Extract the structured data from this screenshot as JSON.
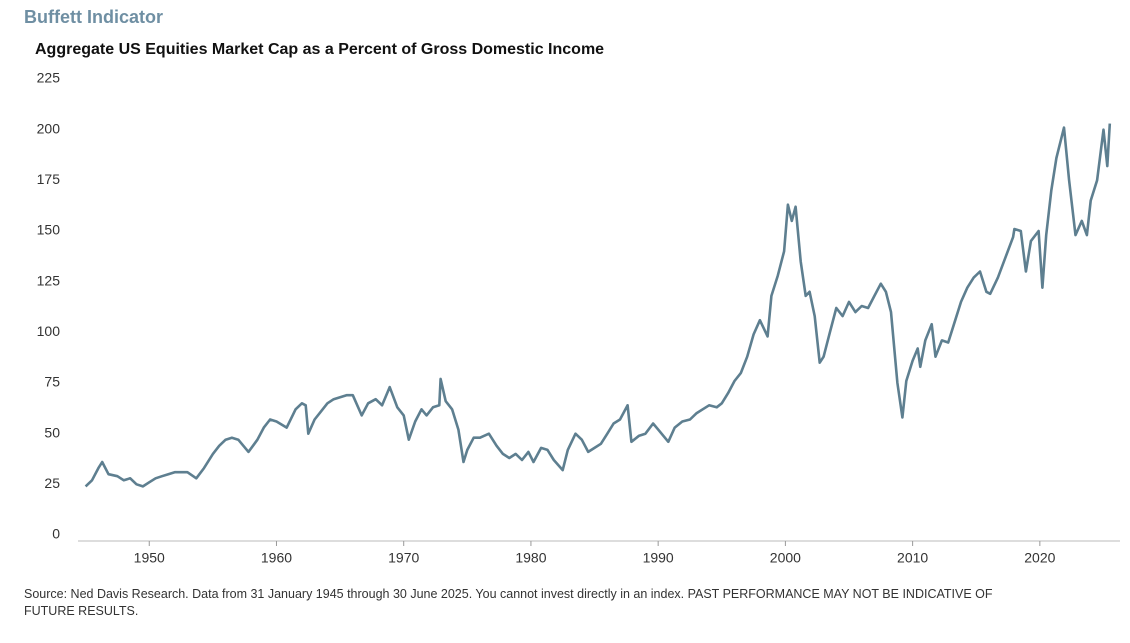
{
  "chart_data": {
    "type": "line",
    "title": "Buffett Indicator",
    "subtitle": "Aggregate US Equities Market Cap as a Percent of Gross Domestic Income",
    "source": "Source: Ned Davis Research. Data from 31 January 1945 through 30 June 2025. You cannot invest directly in an index. PAST PERFORMANCE MAY NOT BE INDICATIVE OF FUTURE RESULTS.",
    "color": "#5e7f90",
    "xlim": [
      1944.4,
      2026.3
    ],
    "xticks": [
      1950,
      1960,
      1970,
      1980,
      1990,
      2000,
      2010,
      2020
    ],
    "ylim": [
      0,
      225
    ],
    "yticks": [
      0,
      25,
      50,
      75,
      100,
      125,
      150,
      175,
      200,
      225
    ],
    "grid": false,
    "x": [
      1945.0,
      1945.5,
      1946.0,
      1946.3,
      1946.8,
      1947.5,
      1948.0,
      1948.5,
      1949.0,
      1949.5,
      1950.0,
      1950.5,
      1951.0,
      1951.5,
      1952.0,
      1952.5,
      1953.0,
      1953.7,
      1954.3,
      1955.0,
      1955.5,
      1956.0,
      1956.5,
      1957.0,
      1957.8,
      1958.5,
      1959.0,
      1959.5,
      1960.0,
      1960.8,
      1961.5,
      1962.0,
      1962.3,
      1962.5,
      1963.0,
      1963.5,
      1964.0,
      1964.5,
      1965.0,
      1965.5,
      1966.0,
      1966.7,
      1967.2,
      1967.8,
      1968.3,
      1968.9,
      1969.5,
      1970.0,
      1970.4,
      1970.9,
      1971.4,
      1971.8,
      1972.3,
      1972.8,
      1972.9,
      1973.3,
      1973.8,
      1974.3,
      1974.7,
      1975.0,
      1975.5,
      1976.0,
      1976.7,
      1977.3,
      1977.8,
      1978.3,
      1978.8,
      1979.3,
      1979.8,
      1980.2,
      1980.8,
      1981.3,
      1981.8,
      1982.5,
      1982.9,
      1983.5,
      1984.0,
      1984.5,
      1985.0,
      1985.5,
      1986.0,
      1986.5,
      1987.0,
      1987.6,
      1987.9,
      1988.5,
      1989.0,
      1989.6,
      1990.0,
      1990.8,
      1991.3,
      1991.9,
      1992.5,
      1993.0,
      1993.5,
      1994.0,
      1994.6,
      1995.0,
      1995.5,
      1996.0,
      1996.5,
      1997.0,
      1997.5,
      1998.0,
      1998.6,
      1998.9,
      1999.4,
      1999.9,
      2000.2,
      2000.5,
      2000.8,
      2001.2,
      2001.6,
      2001.9,
      2002.3,
      2002.7,
      2003.0,
      2003.5,
      2004.0,
      2004.5,
      2005.0,
      2005.5,
      2006.0,
      2006.5,
      2007.0,
      2007.5,
      2007.9,
      2008.3,
      2008.8,
      2009.2,
      2009.5,
      2010.0,
      2010.4,
      2010.6,
      2011.0,
      2011.5,
      2011.8,
      2012.3,
      2012.8,
      2013.3,
      2013.8,
      2014.3,
      2014.8,
      2015.3,
      2015.8,
      2016.1,
      2016.7,
      2017.3,
      2017.9,
      2018.0,
      2018.5,
      2018.9,
      2019.3,
      2019.9,
      2020.2,
      2020.5,
      2020.9,
      2021.3,
      2021.9,
      2022.3,
      2022.8,
      2023.3,
      2023.7,
      2024.0,
      2024.5,
      2025.0,
      2025.3,
      2025.5
    ],
    "series": [
      {
        "values": [
          24,
          27,
          33,
          36,
          30,
          29,
          27,
          28,
          25,
          24,
          26,
          28,
          29,
          30,
          31,
          31,
          31,
          28,
          33,
          40,
          44,
          47,
          48,
          47,
          41,
          47,
          53,
          57,
          56,
          53,
          62,
          65,
          64,
          50,
          57,
          61,
          65,
          67,
          68,
          69,
          69,
          59,
          65,
          67,
          64,
          73,
          63,
          59,
          47,
          56,
          62,
          59,
          63,
          64,
          77,
          66,
          62,
          52,
          36,
          42,
          48,
          48,
          50,
          44,
          40,
          38,
          40,
          37,
          41,
          36,
          43,
          42,
          37,
          32,
          42,
          50,
          47,
          41,
          43,
          45,
          50,
          55,
          57,
          64,
          46,
          49,
          50,
          55,
          52,
          46,
          53,
          56,
          57,
          60,
          62,
          64,
          63,
          65,
          70,
          76,
          80,
          88,
          99,
          106,
          98,
          118,
          128,
          140,
          163,
          155,
          162,
          135,
          118,
          120,
          108,
          85,
          88,
          100,
          112,
          108,
          115,
          110,
          113,
          112,
          118,
          124,
          120,
          110,
          75,
          58,
          76,
          86,
          92,
          83,
          96,
          104,
          88,
          96,
          95,
          105,
          115,
          122,
          127,
          130,
          120,
          119,
          127,
          137,
          147,
          151,
          150,
          130,
          145,
          150,
          122,
          148,
          170,
          186,
          201,
          175,
          148,
          155,
          148,
          165,
          175,
          200,
          182,
          203
        ]
      }
    ]
  }
}
